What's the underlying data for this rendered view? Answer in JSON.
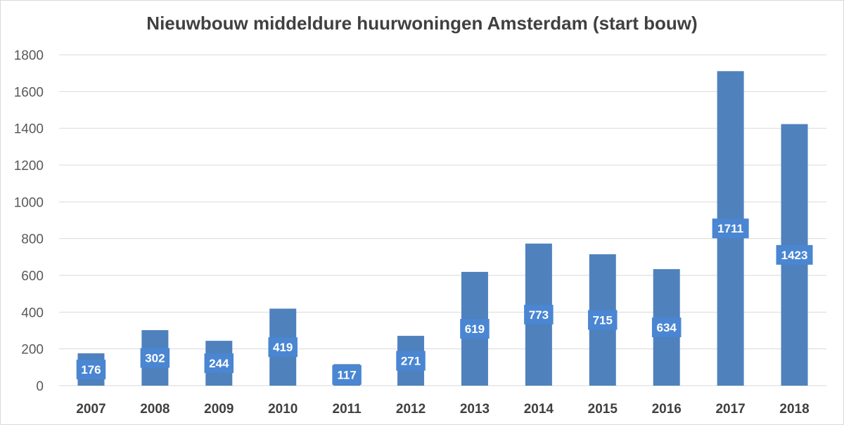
{
  "chart_data": {
    "type": "bar",
    "title": "Nieuwbouw middeldure huurwoningen Amsterdam (start bouw)",
    "xlabel": "",
    "ylabel": "",
    "categories": [
      "2007",
      "2008",
      "2009",
      "2010",
      "2011",
      "2012",
      "2013",
      "2014",
      "2015",
      "2016",
      "2017",
      "2018"
    ],
    "values": [
      176,
      302,
      244,
      419,
      117,
      271,
      619,
      773,
      715,
      634,
      1711,
      1423
    ],
    "ylim": [
      0,
      1800
    ],
    "yticks": [
      0,
      200,
      400,
      600,
      800,
      1000,
      1200,
      1400,
      1600,
      1800
    ],
    "grid": true,
    "legend": "none",
    "colors": {
      "bar": "#4f81bd",
      "label_box": "#4a86d2",
      "grid": "#d9d9d9"
    }
  }
}
